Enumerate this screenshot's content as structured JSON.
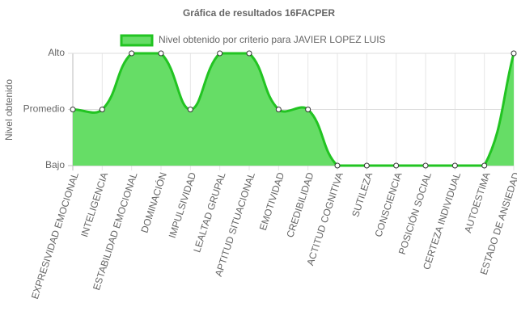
{
  "chart_data": {
    "type": "area",
    "title": "Gráfica de resultados 16FACPER",
    "ylabel": "Nivel obtenido",
    "categories": [
      "EXPRESIVIDAD EMOCIONAL",
      "INTELIGENCIA",
      "ESTABILIDAD EMOCIONAL",
      "DOMINACIÓN",
      "IMPULSIVIDAD",
      "LEALTAD GRUPAL",
      "APTITUD SITUACIONAL",
      "EMOTIVIDAD",
      "CREDIBILIDAD",
      "ACTITUD COGNITIVA",
      "SUTILEZA",
      "CONSCIENCIA",
      "POSICIÓN SOCIAL",
      "CERTEZA INDIVIDUAL",
      "AUTOESTIMA",
      "ESTADO DE ANSIEDAD"
    ],
    "series": [
      {
        "name": "Nivel obtenido por criterio para JAVIER LOPEZ LUIS",
        "color": "#22c422",
        "fill": "#66dd66",
        "values": [
          1,
          1,
          2,
          2,
          1,
          2,
          2,
          1,
          1,
          0,
          0,
          0,
          0,
          0,
          0,
          2
        ]
      }
    ],
    "ylim": [
      0,
      2
    ],
    "yticks": [
      {
        "value": 0,
        "label": "Bajo"
      },
      {
        "value": 1,
        "label": "Promedio"
      },
      {
        "value": 2,
        "label": "Alto"
      }
    ],
    "grid": true
  }
}
